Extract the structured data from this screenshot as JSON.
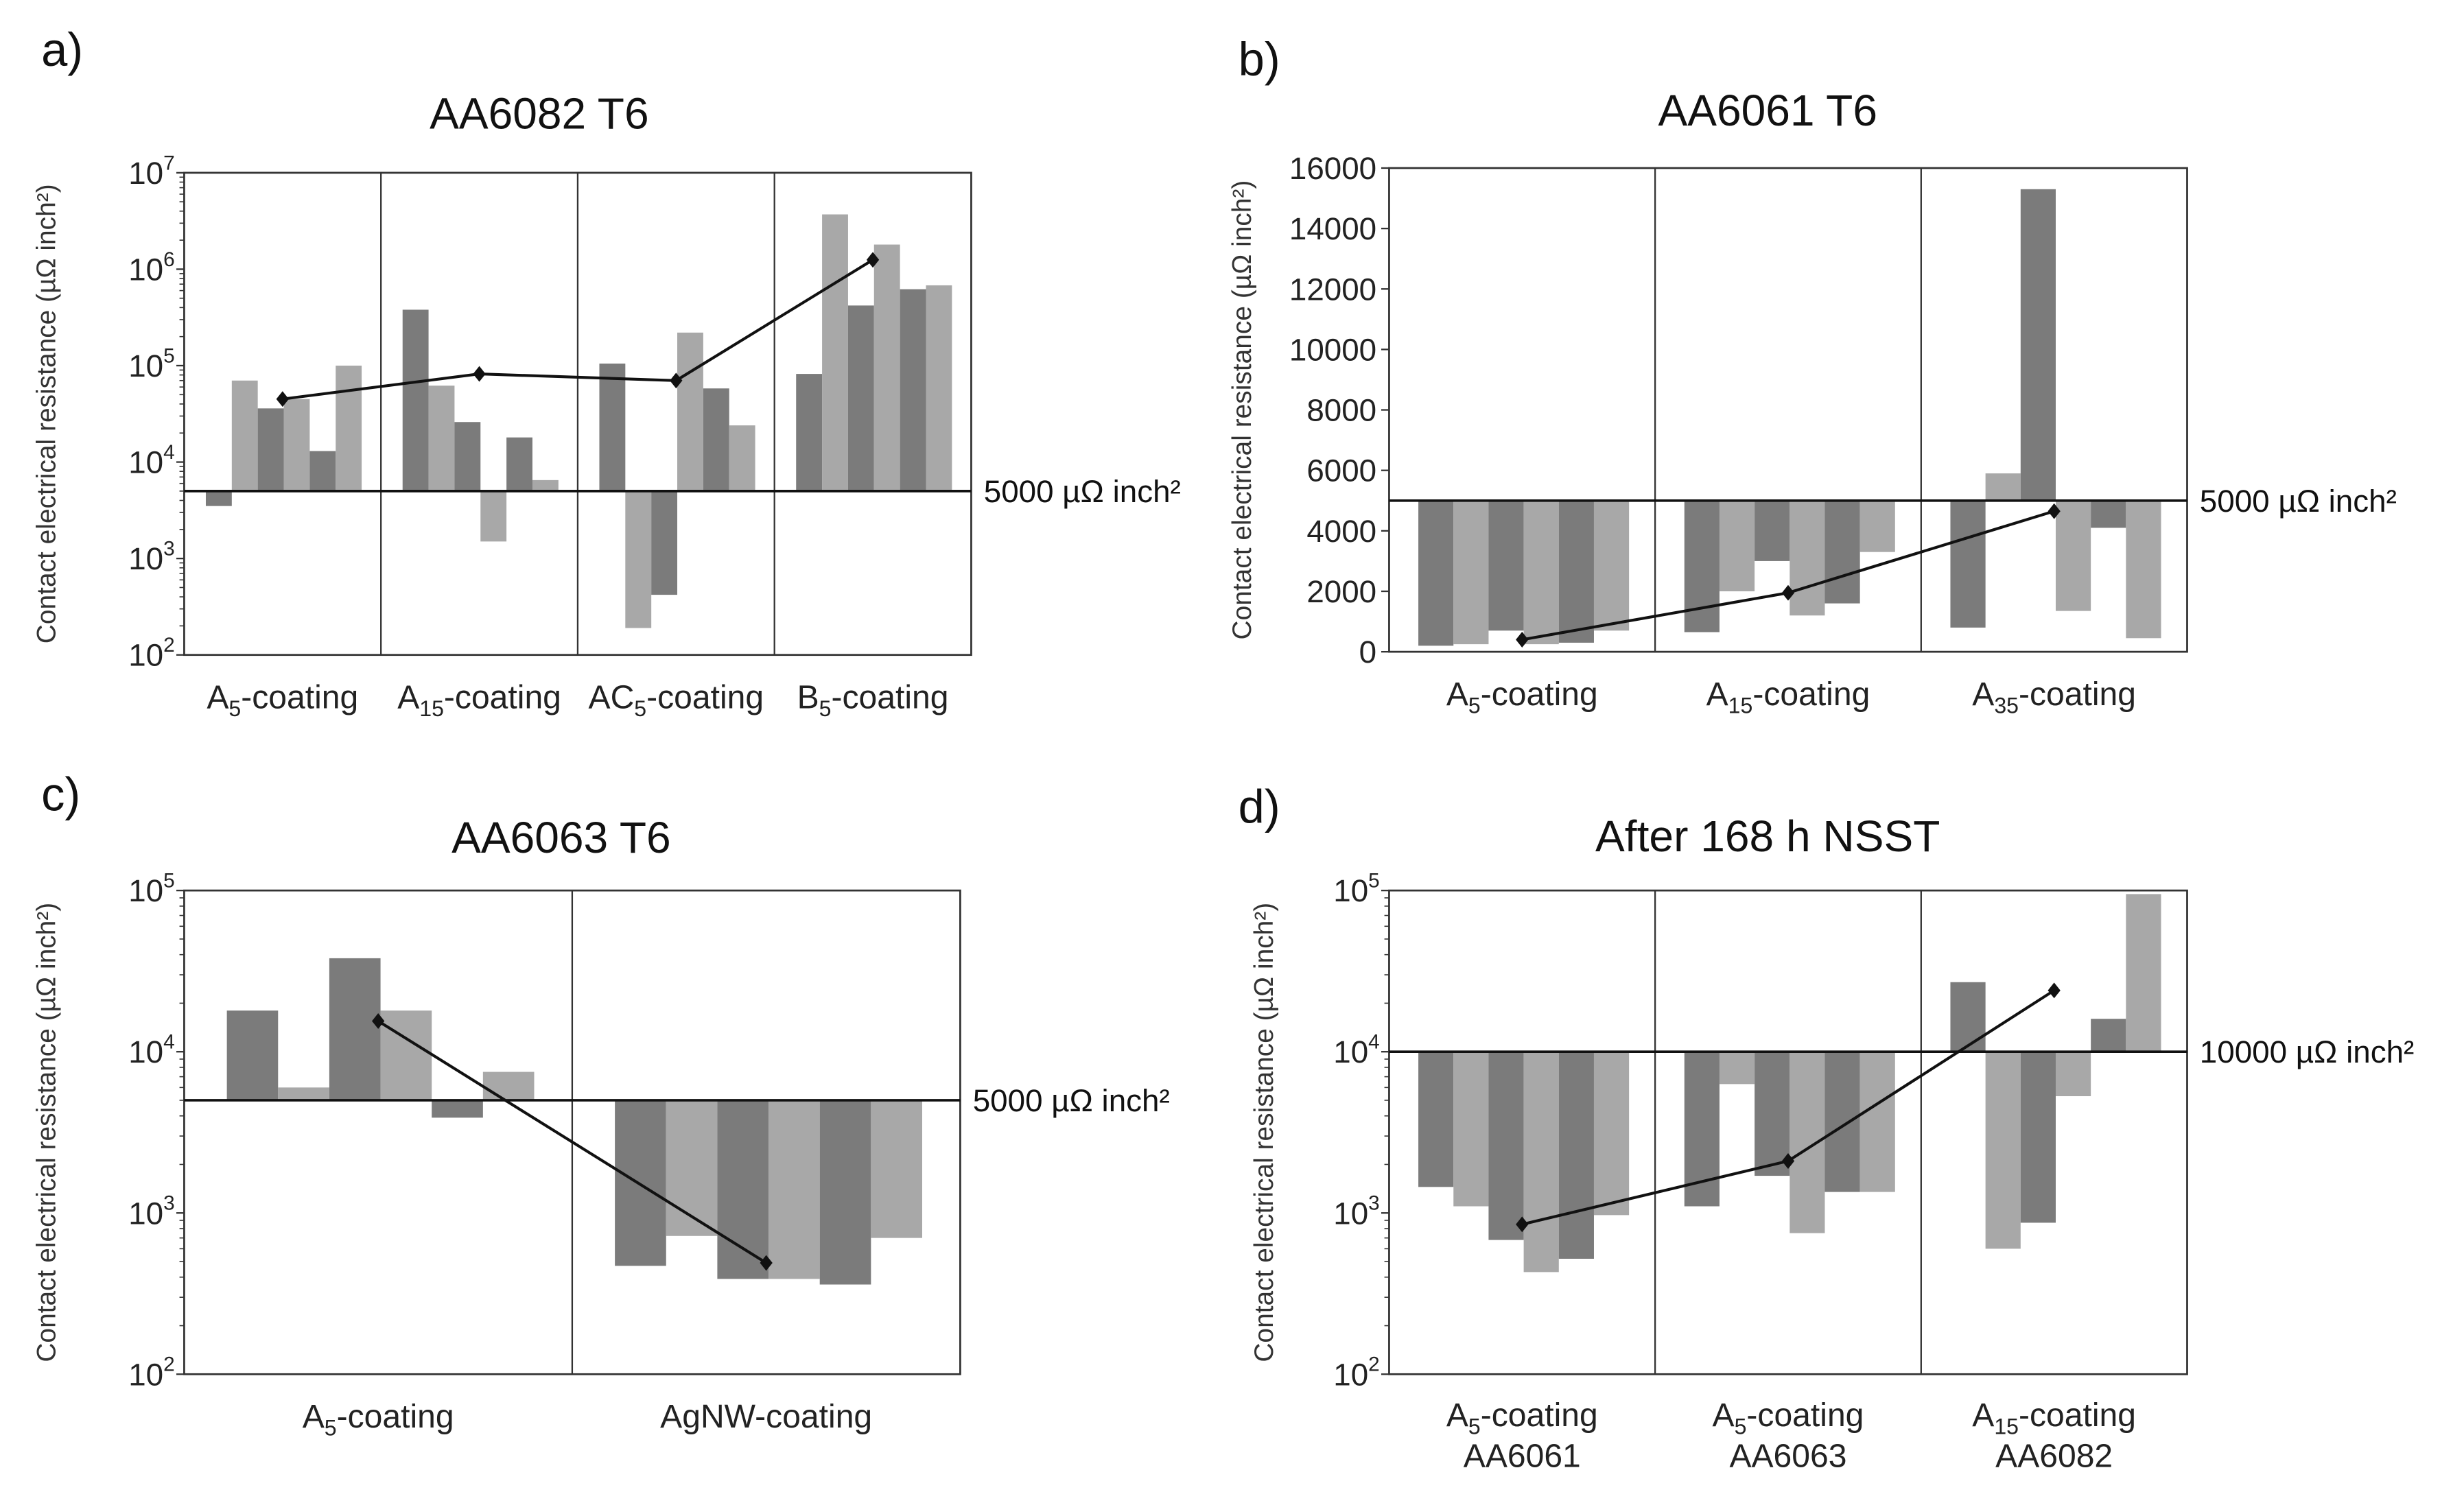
{
  "colors": {
    "dark": "#7b7b7b",
    "light": "#a8a8a8",
    "line": "#111111",
    "frame": "#333333"
  },
  "chart_data": [
    {
      "panel": "a)",
      "type": "bar",
      "title": "AA6082 T6",
      "scale": "log",
      "ylim": [
        100,
        10000000
      ],
      "ticks": [
        2,
        3,
        4,
        5,
        6,
        7
      ],
      "ylabel": "Contact electrical resistance (µΩ inch²)",
      "baseline": 5000,
      "threshold_label": "5000 µΩ inch²",
      "categories": [
        {
          "main": "A",
          "sub": "5",
          "rest": "-coating",
          "line2": ""
        },
        {
          "main": "A",
          "sub": "15",
          "rest": "-coating",
          "line2": ""
        },
        {
          "main": "AC",
          "sub": "5",
          "rest": "-coating",
          "line2": ""
        },
        {
          "main": "B",
          "sub": "5",
          "rest": "-coating",
          "line2": ""
        }
      ],
      "values": [
        [
          3500,
          70000,
          36000,
          45000,
          13000,
          100000
        ],
        [
          380000,
          62000,
          26000,
          1500,
          18000,
          6500
        ],
        [
          105000,
          190,
          420,
          220000,
          58000,
          24000
        ],
        [
          82000,
          3700000,
          420000,
          1800000,
          620000,
          680000
        ]
      ],
      "means": [
        45000,
        82000,
        70000,
        1250000
      ]
    },
    {
      "panel": "b)",
      "type": "bar",
      "title": "AA6061 T6",
      "scale": "linear",
      "ylim": [
        0,
        16000
      ],
      "ticks": [
        0,
        2000,
        4000,
        6000,
        8000,
        10000,
        12000,
        14000,
        16000
      ],
      "ylabel": "Contact electrical resistance (µΩ inch²)",
      "baseline": 5000,
      "threshold_label": "5000 µΩ inch²",
      "categories": [
        {
          "main": "A",
          "sub": "5",
          "rest": "-coating",
          "line2": ""
        },
        {
          "main": "A",
          "sub": "15",
          "rest": "-coating",
          "line2": ""
        },
        {
          "main": "A",
          "sub": "35",
          "rest": "-coating",
          "line2": ""
        }
      ],
      "values": [
        [
          200,
          250,
          700,
          250,
          300,
          700
        ],
        [
          650,
          2000,
          3000,
          1200,
          1600,
          3300
        ],
        [
          800,
          5900,
          15300,
          1350,
          4100,
          450
        ]
      ],
      "means": [
        400,
        1950,
        4650
      ]
    },
    {
      "panel": "c)",
      "type": "bar",
      "title": "AA6063 T6",
      "scale": "log",
      "ylim": [
        100,
        100000
      ],
      "ticks": [
        2,
        3,
        4,
        5
      ],
      "ylabel": "Contact electrical resistance (µΩ inch²)",
      "baseline": 5000,
      "threshold_label": "5000 µΩ inch²",
      "categories": [
        {
          "main": "A",
          "sub": "5",
          "rest": "-coating",
          "line2": ""
        },
        {
          "main": "AgNW-coating",
          "sub": "",
          "rest": "",
          "line2": ""
        }
      ],
      "values": [
        [
          18000,
          6000,
          38000,
          18000,
          3900,
          7500
        ],
        [
          470,
          720,
          390,
          390,
          360,
          700
        ]
      ],
      "means": [
        15500,
        490
      ]
    },
    {
      "panel": "d)",
      "type": "bar",
      "title": "After 168 h NSST",
      "scale": "log",
      "ylim": [
        100,
        100000
      ],
      "ticks": [
        2,
        3,
        4,
        5
      ],
      "ylabel": "Contact electrical resistance (µΩ inch²)",
      "baseline": 10000,
      "threshold_label": "10000 µΩ inch²",
      "categories": [
        {
          "main": "A",
          "sub": "5",
          "rest": "-coating",
          "line2": "AA6061"
        },
        {
          "main": "A",
          "sub": "5",
          "rest": "-coating",
          "line2": "AA6063"
        },
        {
          "main": "A",
          "sub": "15",
          "rest": "-coating",
          "line2": "AA6082"
        }
      ],
      "values": [
        [
          1450,
          1100,
          680,
          430,
          520,
          970
        ],
        [
          1100,
          6300,
          1700,
          750,
          1350,
          1350
        ],
        [
          27000,
          600,
          870,
          5300,
          16000,
          95000
        ]
      ],
      "means": [
        850,
        2100,
        24000
      ]
    }
  ]
}
